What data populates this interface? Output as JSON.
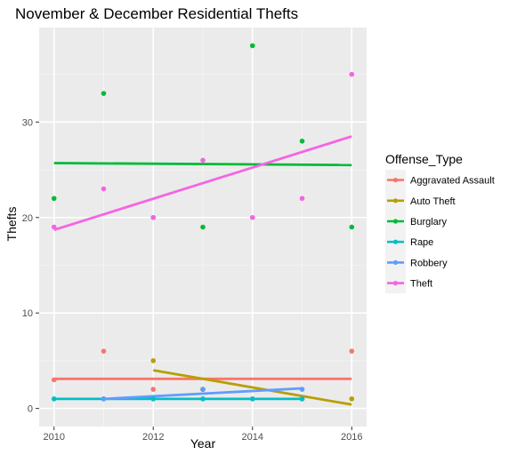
{
  "chart_data": {
    "type": "scatter",
    "title": "November & December Residential Thefts",
    "xlabel": "Year",
    "ylabel": "Thefts",
    "xlim": [
      2009.7,
      2016.3
    ],
    "ylim": [
      -1.9,
      39.9
    ],
    "x_ticks": [
      2010,
      2012,
      2014,
      2016
    ],
    "y_ticks": [
      0,
      10,
      20,
      30
    ],
    "grid": true,
    "legend_position": "right",
    "legend_title": "Offense_Type",
    "series": [
      {
        "name": "Aggravated Assault",
        "color": "#F8766D",
        "points": [
          [
            2010,
            3
          ],
          [
            2011,
            6
          ],
          [
            2012,
            2
          ],
          [
            2013,
            2
          ],
          [
            2014,
            1
          ],
          [
            2015,
            1
          ],
          [
            2016,
            6
          ]
        ],
        "trend": [
          [
            2010,
            3.1
          ],
          [
            2016,
            3.1
          ]
        ]
      },
      {
        "name": "Auto Theft",
        "color": "#B79F00",
        "points": [
          [
            2012,
            5
          ],
          [
            2013,
            2
          ],
          [
            2016,
            1
          ]
        ],
        "trend": [
          [
            2012,
            4.0
          ],
          [
            2016,
            0.4
          ]
        ]
      },
      {
        "name": "Burglary",
        "color": "#00BA38",
        "points": [
          [
            2010,
            22
          ],
          [
            2011,
            33
          ],
          [
            2012,
            20
          ],
          [
            2013,
            19
          ],
          [
            2014,
            38
          ],
          [
            2015,
            28
          ],
          [
            2016,
            19
          ]
        ],
        "trend": [
          [
            2010,
            25.7
          ],
          [
            2016,
            25.5
          ]
        ]
      },
      {
        "name": "Rape",
        "color": "#00BFC4",
        "points": [
          [
            2010,
            1
          ],
          [
            2011,
            1
          ],
          [
            2012,
            1
          ],
          [
            2013,
            1
          ],
          [
            2014,
            1
          ],
          [
            2015,
            1
          ]
        ],
        "trend": [
          [
            2010,
            1.0
          ],
          [
            2015,
            1.0
          ]
        ]
      },
      {
        "name": "Robbery",
        "color": "#619CFF",
        "points": [
          [
            2011,
            1
          ],
          [
            2013,
            2
          ],
          [
            2015,
            2
          ]
        ],
        "trend": [
          [
            2011,
            1.0
          ],
          [
            2015,
            2.1
          ]
        ]
      },
      {
        "name": "Theft",
        "color": "#F564E3",
        "points": [
          [
            2010,
            19
          ],
          [
            2011,
            23
          ],
          [
            2012,
            20
          ],
          [
            2013,
            26
          ],
          [
            2014,
            20
          ],
          [
            2015,
            22
          ],
          [
            2016,
            35
          ]
        ],
        "trend": [
          [
            2010,
            18.7
          ],
          [
            2016,
            28.5
          ]
        ]
      }
    ]
  }
}
